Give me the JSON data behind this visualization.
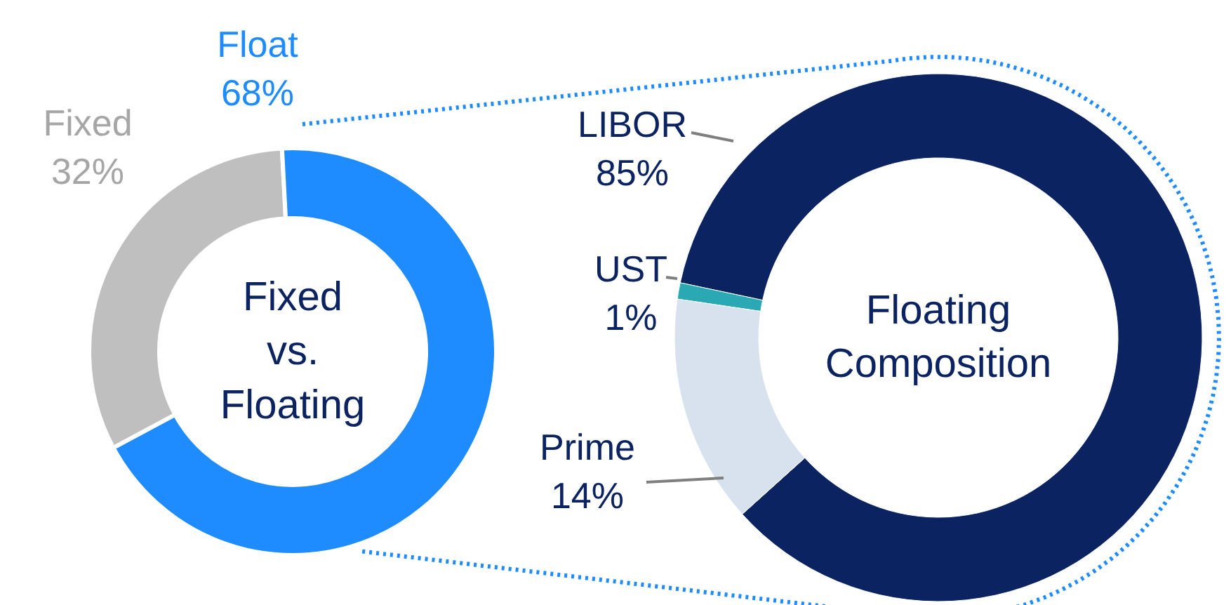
{
  "chart_data": [
    {
      "type": "donut",
      "title": "Fixed vs. Floating",
      "categories": [
        "Fixed",
        "Float"
      ],
      "values": [
        32,
        68
      ],
      "colors": [
        "#bfbfbf",
        "#1e8cff"
      ],
      "value_labels": [
        "32%",
        "68%"
      ]
    },
    {
      "type": "donut",
      "title": "Floating Composition",
      "categories": [
        "LIBOR",
        "UST",
        "Prime"
      ],
      "values": [
        85,
        1,
        14
      ],
      "colors": [
        "#0b2361",
        "#2aa9b4",
        "#d7e2ee"
      ],
      "value_labels": [
        "85%",
        "1%",
        "14%"
      ]
    }
  ]
}
